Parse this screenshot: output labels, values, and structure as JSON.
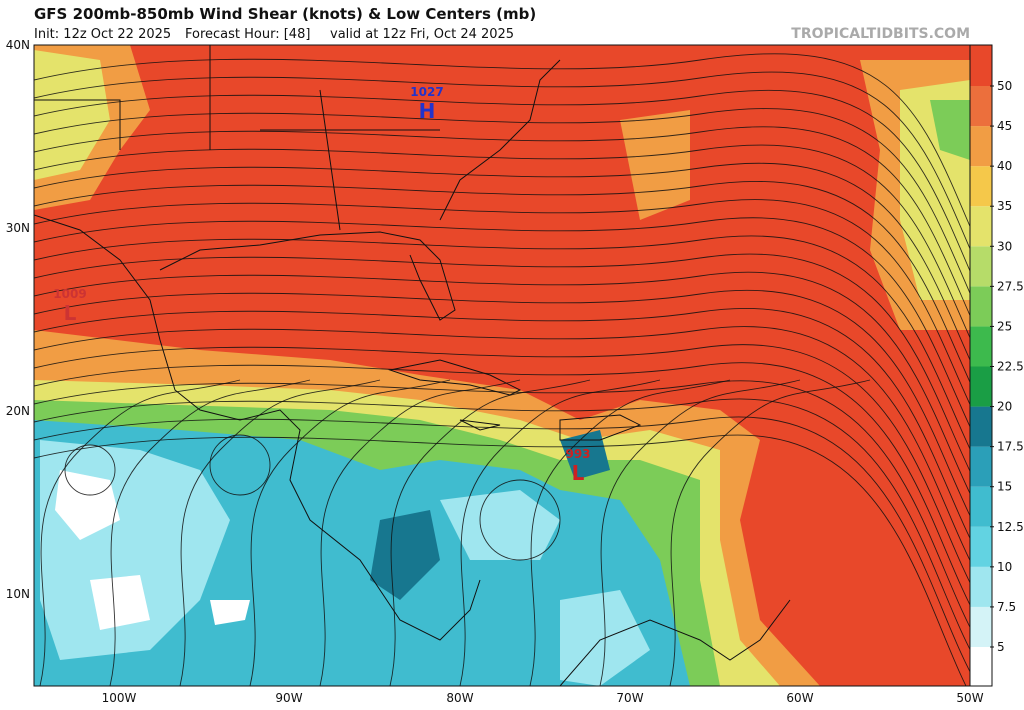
{
  "header": {
    "title": "GFS 200mb-850mb Wind Shear (knots) & Low Centers (mb)",
    "init": "Init: 12z Oct 22 2025",
    "forecast_hour": "Forecast Hour: [48]",
    "valid": "valid at 12z Fri, Oct 24 2025",
    "watermark": "TROPICALTIDBITS.COM"
  },
  "map": {
    "latitude_labels": [
      "40N",
      "30N",
      "20N",
      "10N"
    ],
    "longitude_labels": [
      "100W",
      "90W",
      "80W",
      "70W",
      "60W",
      "50W"
    ],
    "pressure_centers": [
      {
        "value": "1027",
        "symbol": "H",
        "color": "#2233cc"
      },
      {
        "value": "1009",
        "symbol": "L",
        "color": "#cc3333"
      },
      {
        "value": "993",
        "symbol": "L",
        "color": "#cc2222"
      }
    ]
  },
  "colorbar": {
    "ticks": [
      5,
      7.5,
      10,
      12.5,
      15,
      17.5,
      20,
      22.5,
      25,
      27.5,
      30,
      35,
      40,
      45,
      50
    ],
    "colors": [
      "#ffffff",
      "#d4f3f7",
      "#9fe6ef",
      "#62d3e2",
      "#40bccf",
      "#2b9fb8",
      "#17778f",
      "#1a9e45",
      "#3dba4d",
      "#7ccc58",
      "#b6dc69",
      "#e4e36b",
      "#f5c84a",
      "#f19d44",
      "#ec6f3c",
      "#e8482a"
    ]
  }
}
